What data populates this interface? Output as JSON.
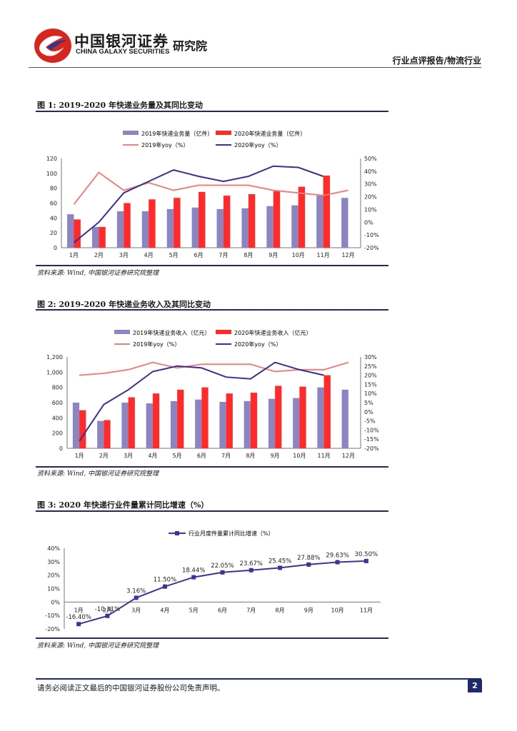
{
  "header": {
    "brand_cn": "中国银河证券",
    "brand_institute": "研究院",
    "brand_en": "CHINA GALAXY SECURITIES",
    "report_type": "行业点评报告/物流行业"
  },
  "figures": [
    {
      "title": "图 1: 2019-2020 年快递业务量及其同比变动",
      "source": "资料来源: Wind, 中国银河证券研究院整理"
    },
    {
      "title": "图 2: 2019-2020 年快递业务收入及其同比变动",
      "source": "资料来源: Wind, 中国银河证券研究院整理"
    },
    {
      "title": "图 3: 2020 年快递行业件量累计同比增速（%）",
      "source": "资料来源: Wind, 中国银河证券研究院整理"
    }
  ],
  "footer": {
    "disclaimer": "请务必阅读正文最后的中国银河证券股份公司免责声明。",
    "page_number": "2"
  },
  "colors": {
    "bar_2019": "#8b85c1",
    "bar_2020": "#ff2a2a",
    "line_2019": "#f08080",
    "line_2020": "#3b2f8f",
    "navy": "#1f2a6b",
    "cum_line": "#3b3596"
  },
  "chart_data": [
    {
      "type": "bar",
      "categories": [
        "1月",
        "2月",
        "3月",
        "4月",
        "5月",
        "6月",
        "7月",
        "8月",
        "9月",
        "10月",
        "11月",
        "12月"
      ],
      "series": [
        {
          "name": "2019年快递业务量（亿件）",
          "kind": "bar",
          "axis": "left",
          "values": [
            45,
            28,
            49,
            49,
            52,
            54,
            52,
            53,
            56,
            57,
            70,
            67
          ]
        },
        {
          "name": "2020年快递业务量（亿件）",
          "kind": "bar",
          "axis": "left",
          "values": [
            38,
            28,
            60,
            65,
            67,
            75,
            70,
            72,
            76,
            82,
            97,
            null
          ]
        },
        {
          "name": "2019年yoy（%）",
          "kind": "line",
          "axis": "right",
          "values": [
            14,
            39,
            25,
            31,
            25,
            29,
            29,
            29,
            25,
            23,
            21,
            25
          ]
        },
        {
          "name": "2020年yoy（%）",
          "kind": "line",
          "axis": "right",
          "values": [
            -16,
            0,
            23,
            32,
            41,
            36,
            32,
            36,
            44,
            43,
            36,
            null
          ]
        }
      ],
      "y_left": {
        "min": 0,
        "max": 120,
        "ticks": [
          "0",
          "20",
          "40",
          "60",
          "80",
          "100",
          "120"
        ]
      },
      "y_right": {
        "min": -20,
        "max": 50,
        "ticks": [
          "-20%",
          "-10%",
          "0%",
          "10%",
          "20%",
          "30%",
          "40%",
          "50%"
        ]
      }
    },
    {
      "type": "bar",
      "categories": [
        "1月",
        "2月",
        "3月",
        "4月",
        "5月",
        "6月",
        "7月",
        "8月",
        "9月",
        "10月",
        "11月",
        "12月"
      ],
      "series": [
        {
          "name": "2019年快递业务收入（亿元）",
          "kind": "bar",
          "axis": "left",
          "values": [
            600,
            360,
            600,
            590,
            620,
            640,
            610,
            620,
            650,
            660,
            800,
            770
          ]
        },
        {
          "name": "2020年快递业务收入（亿元）",
          "kind": "bar",
          "axis": "left",
          "values": [
            500,
            370,
            670,
            720,
            770,
            800,
            720,
            730,
            820,
            810,
            960,
            null
          ]
        },
        {
          "name": "2019年yoy（%）",
          "kind": "line",
          "axis": "right",
          "values": [
            20,
            21,
            23,
            27,
            24,
            26,
            26,
            26,
            22,
            23,
            23,
            27
          ]
        },
        {
          "name": "2020年yoy（%）",
          "kind": "line",
          "axis": "right",
          "values": [
            -16,
            4,
            12,
            22,
            25,
            24,
            19,
            18,
            27,
            23,
            20,
            null
          ]
        }
      ],
      "y_left": {
        "min": 0,
        "max": 1200,
        "ticks": [
          "0",
          "200",
          "400",
          "600",
          "800",
          "1,000",
          "1,200"
        ]
      },
      "y_right": {
        "min": -20,
        "max": 30,
        "ticks": [
          "-20%",
          "-15%",
          "-10%",
          "-5%",
          "0%",
          "5%",
          "10%",
          "15%",
          "20%",
          "25%",
          "30%"
        ]
      }
    },
    {
      "type": "line",
      "categories": [
        "1月",
        "2月",
        "3月",
        "4月",
        "5月",
        "6月",
        "7月",
        "8月",
        "9月",
        "10月",
        "11月"
      ],
      "series": [
        {
          "name": "行业月度件量累计同比增速（%）",
          "values": [
            -16.4,
            -10.31,
            3.16,
            11.5,
            18.44,
            22.05,
            23.67,
            25.45,
            27.88,
            29.63,
            30.5
          ],
          "labels": [
            "-16.40%",
            "-10.31%",
            "3.16%",
            "11.50%",
            "18.44%",
            "22.05%",
            "23.67%",
            "25.45%",
            "27.88%",
            "29.63%",
            "30.50%"
          ]
        }
      ],
      "y": {
        "min": -20,
        "max": 40,
        "ticks": [
          "-20%",
          "-10%",
          "0%",
          "10%",
          "20%",
          "30%",
          "40%"
        ]
      }
    }
  ]
}
